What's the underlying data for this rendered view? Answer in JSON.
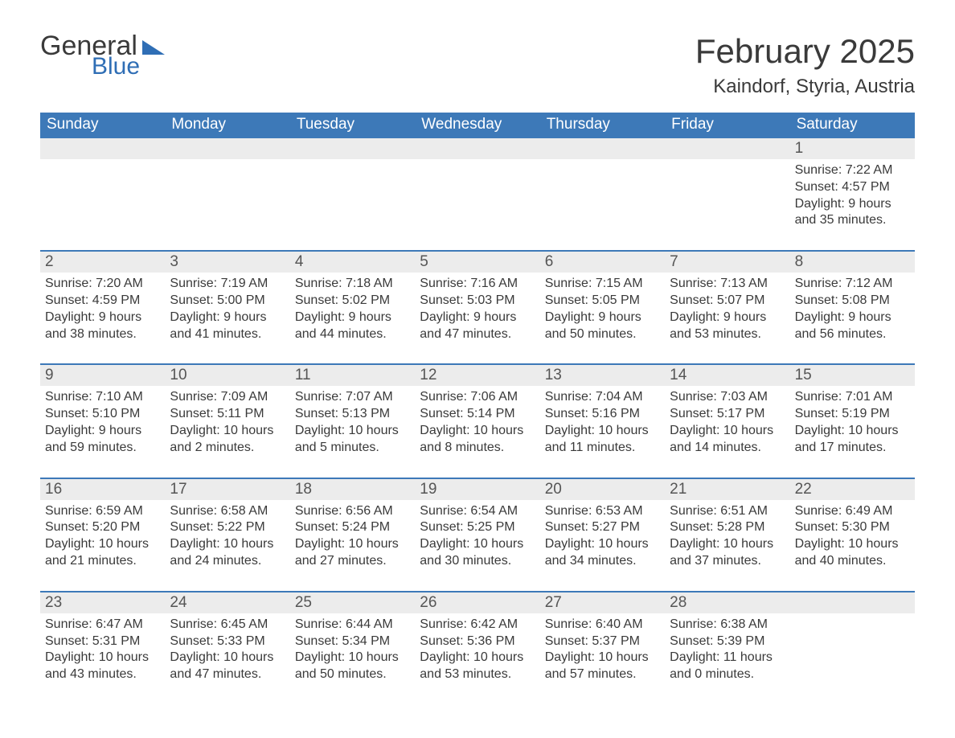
{
  "logo": {
    "text1": "General",
    "text2": "Blue",
    "color1": "#3a3a3a",
    "color2": "#2f6eb5"
  },
  "title": "February 2025",
  "location": "Kaindorf, Styria, Austria",
  "header_bg": "#3d79b8",
  "header_fg": "#ffffff",
  "daynum_bg": "#ececec",
  "week_divider": "#3d79b8",
  "weekdays": [
    "Sunday",
    "Monday",
    "Tuesday",
    "Wednesday",
    "Thursday",
    "Friday",
    "Saturday"
  ],
  "weeks": [
    [
      {
        "n": "",
        "sunrise": "",
        "sunset": "",
        "daylight": ""
      },
      {
        "n": "",
        "sunrise": "",
        "sunset": "",
        "daylight": ""
      },
      {
        "n": "",
        "sunrise": "",
        "sunset": "",
        "daylight": ""
      },
      {
        "n": "",
        "sunrise": "",
        "sunset": "",
        "daylight": ""
      },
      {
        "n": "",
        "sunrise": "",
        "sunset": "",
        "daylight": ""
      },
      {
        "n": "",
        "sunrise": "",
        "sunset": "",
        "daylight": ""
      },
      {
        "n": "1",
        "sunrise": "Sunrise: 7:22 AM",
        "sunset": "Sunset: 4:57 PM",
        "daylight": "Daylight: 9 hours and 35 minutes."
      }
    ],
    [
      {
        "n": "2",
        "sunrise": "Sunrise: 7:20 AM",
        "sunset": "Sunset: 4:59 PM",
        "daylight": "Daylight: 9 hours and 38 minutes."
      },
      {
        "n": "3",
        "sunrise": "Sunrise: 7:19 AM",
        "sunset": "Sunset: 5:00 PM",
        "daylight": "Daylight: 9 hours and 41 minutes."
      },
      {
        "n": "4",
        "sunrise": "Sunrise: 7:18 AM",
        "sunset": "Sunset: 5:02 PM",
        "daylight": "Daylight: 9 hours and 44 minutes."
      },
      {
        "n": "5",
        "sunrise": "Sunrise: 7:16 AM",
        "sunset": "Sunset: 5:03 PM",
        "daylight": "Daylight: 9 hours and 47 minutes."
      },
      {
        "n": "6",
        "sunrise": "Sunrise: 7:15 AM",
        "sunset": "Sunset: 5:05 PM",
        "daylight": "Daylight: 9 hours and 50 minutes."
      },
      {
        "n": "7",
        "sunrise": "Sunrise: 7:13 AM",
        "sunset": "Sunset: 5:07 PM",
        "daylight": "Daylight: 9 hours and 53 minutes."
      },
      {
        "n": "8",
        "sunrise": "Sunrise: 7:12 AM",
        "sunset": "Sunset: 5:08 PM",
        "daylight": "Daylight: 9 hours and 56 minutes."
      }
    ],
    [
      {
        "n": "9",
        "sunrise": "Sunrise: 7:10 AM",
        "sunset": "Sunset: 5:10 PM",
        "daylight": "Daylight: 9 hours and 59 minutes."
      },
      {
        "n": "10",
        "sunrise": "Sunrise: 7:09 AM",
        "sunset": "Sunset: 5:11 PM",
        "daylight": "Daylight: 10 hours and 2 minutes."
      },
      {
        "n": "11",
        "sunrise": "Sunrise: 7:07 AM",
        "sunset": "Sunset: 5:13 PM",
        "daylight": "Daylight: 10 hours and 5 minutes."
      },
      {
        "n": "12",
        "sunrise": "Sunrise: 7:06 AM",
        "sunset": "Sunset: 5:14 PM",
        "daylight": "Daylight: 10 hours and 8 minutes."
      },
      {
        "n": "13",
        "sunrise": "Sunrise: 7:04 AM",
        "sunset": "Sunset: 5:16 PM",
        "daylight": "Daylight: 10 hours and 11 minutes."
      },
      {
        "n": "14",
        "sunrise": "Sunrise: 7:03 AM",
        "sunset": "Sunset: 5:17 PM",
        "daylight": "Daylight: 10 hours and 14 minutes."
      },
      {
        "n": "15",
        "sunrise": "Sunrise: 7:01 AM",
        "sunset": "Sunset: 5:19 PM",
        "daylight": "Daylight: 10 hours and 17 minutes."
      }
    ],
    [
      {
        "n": "16",
        "sunrise": "Sunrise: 6:59 AM",
        "sunset": "Sunset: 5:20 PM",
        "daylight": "Daylight: 10 hours and 21 minutes."
      },
      {
        "n": "17",
        "sunrise": "Sunrise: 6:58 AM",
        "sunset": "Sunset: 5:22 PM",
        "daylight": "Daylight: 10 hours and 24 minutes."
      },
      {
        "n": "18",
        "sunrise": "Sunrise: 6:56 AM",
        "sunset": "Sunset: 5:24 PM",
        "daylight": "Daylight: 10 hours and 27 minutes."
      },
      {
        "n": "19",
        "sunrise": "Sunrise: 6:54 AM",
        "sunset": "Sunset: 5:25 PM",
        "daylight": "Daylight: 10 hours and 30 minutes."
      },
      {
        "n": "20",
        "sunrise": "Sunrise: 6:53 AM",
        "sunset": "Sunset: 5:27 PM",
        "daylight": "Daylight: 10 hours and 34 minutes."
      },
      {
        "n": "21",
        "sunrise": "Sunrise: 6:51 AM",
        "sunset": "Sunset: 5:28 PM",
        "daylight": "Daylight: 10 hours and 37 minutes."
      },
      {
        "n": "22",
        "sunrise": "Sunrise: 6:49 AM",
        "sunset": "Sunset: 5:30 PM",
        "daylight": "Daylight: 10 hours and 40 minutes."
      }
    ],
    [
      {
        "n": "23",
        "sunrise": "Sunrise: 6:47 AM",
        "sunset": "Sunset: 5:31 PM",
        "daylight": "Daylight: 10 hours and 43 minutes."
      },
      {
        "n": "24",
        "sunrise": "Sunrise: 6:45 AM",
        "sunset": "Sunset: 5:33 PM",
        "daylight": "Daylight: 10 hours and 47 minutes."
      },
      {
        "n": "25",
        "sunrise": "Sunrise: 6:44 AM",
        "sunset": "Sunset: 5:34 PM",
        "daylight": "Daylight: 10 hours and 50 minutes."
      },
      {
        "n": "26",
        "sunrise": "Sunrise: 6:42 AM",
        "sunset": "Sunset: 5:36 PM",
        "daylight": "Daylight: 10 hours and 53 minutes."
      },
      {
        "n": "27",
        "sunrise": "Sunrise: 6:40 AM",
        "sunset": "Sunset: 5:37 PM",
        "daylight": "Daylight: 10 hours and 57 minutes."
      },
      {
        "n": "28",
        "sunrise": "Sunrise: 6:38 AM",
        "sunset": "Sunset: 5:39 PM",
        "daylight": "Daylight: 11 hours and 0 minutes."
      },
      {
        "n": "",
        "sunrise": "",
        "sunset": "",
        "daylight": ""
      }
    ]
  ]
}
